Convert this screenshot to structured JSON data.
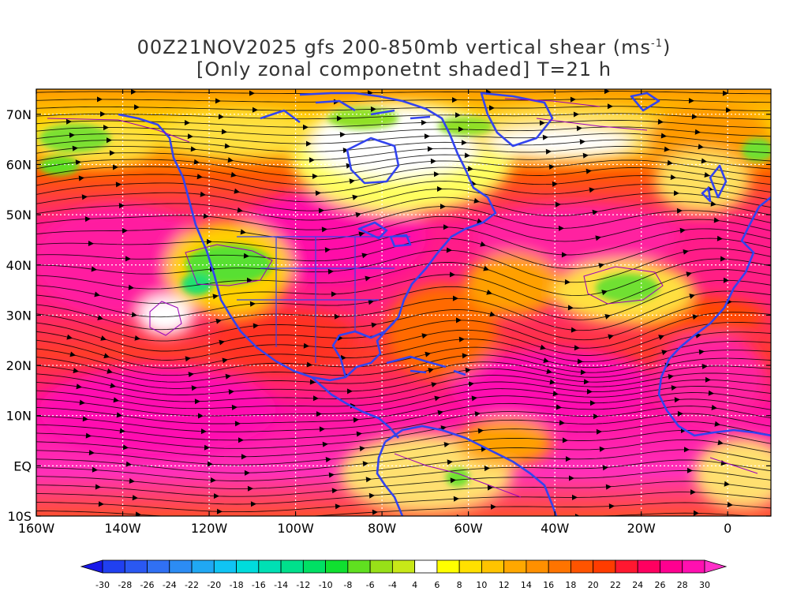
{
  "title": {
    "line1_prefix": "00Z21NOV2025 gfs 200-850mb vertical shear (ms",
    "line1_sup": "-1",
    "line1_suffix": ")",
    "line2": "[Only zonal componetnt shaded] T=21 h"
  },
  "map": {
    "lon_min": -160,
    "lon_max": 10,
    "lat_min": -10,
    "lat_max": 75,
    "lat_ticks": [
      {
        "value": 70,
        "label": "70N"
      },
      {
        "value": 60,
        "label": "60N"
      },
      {
        "value": 50,
        "label": "50N"
      },
      {
        "value": 40,
        "label": "40N"
      },
      {
        "value": 30,
        "label": "30N"
      },
      {
        "value": 20,
        "label": "20N"
      },
      {
        "value": 10,
        "label": "10N"
      },
      {
        "value": 0,
        "label": "EQ"
      },
      {
        "value": -10,
        "label": "10S"
      }
    ],
    "lon_ticks": [
      {
        "value": -160,
        "label": "160W"
      },
      {
        "value": -140,
        "label": "140W"
      },
      {
        "value": -120,
        "label": "120W"
      },
      {
        "value": -100,
        "label": "100W"
      },
      {
        "value": -80,
        "label": "80W"
      },
      {
        "value": -60,
        "label": "60W"
      },
      {
        "value": -40,
        "label": "40W"
      },
      {
        "value": -20,
        "label": "20W"
      },
      {
        "value": 0,
        "label": "0"
      }
    ],
    "colors": {
      "land_outline": "#3344ee",
      "streamline": "#000000",
      "contour": "#9900bb",
      "grid": "#ffffff"
    }
  },
  "colorbar": {
    "labels": [
      "-30",
      "-28",
      "-26",
      "-24",
      "-22",
      "-20",
      "-18",
      "-16",
      "-14",
      "-12",
      "-10",
      "-8",
      "-6",
      "-4",
      "4",
      "6",
      "8",
      "10",
      "12",
      "14",
      "16",
      "18",
      "20",
      "22",
      "24",
      "26",
      "28",
      "30"
    ],
    "colors": [
      "#1818e8",
      "#2040f0",
      "#2a58f2",
      "#3070f4",
      "#2c8cf4",
      "#20a8f4",
      "#10c4f4",
      "#00dcdc",
      "#00e0b4",
      "#00e08c",
      "#00e064",
      "#10e030",
      "#60e020",
      "#98e018",
      "#c8e818",
      "#ffffff",
      "#ffff00",
      "#ffe000",
      "#ffc400",
      "#ffa800",
      "#ff9000",
      "#ff7400",
      "#ff5400",
      "#ff3c00",
      "#ff1830",
      "#ff0060",
      "#ff0090",
      "#ff10b0",
      "#ff30c8"
    ]
  }
}
